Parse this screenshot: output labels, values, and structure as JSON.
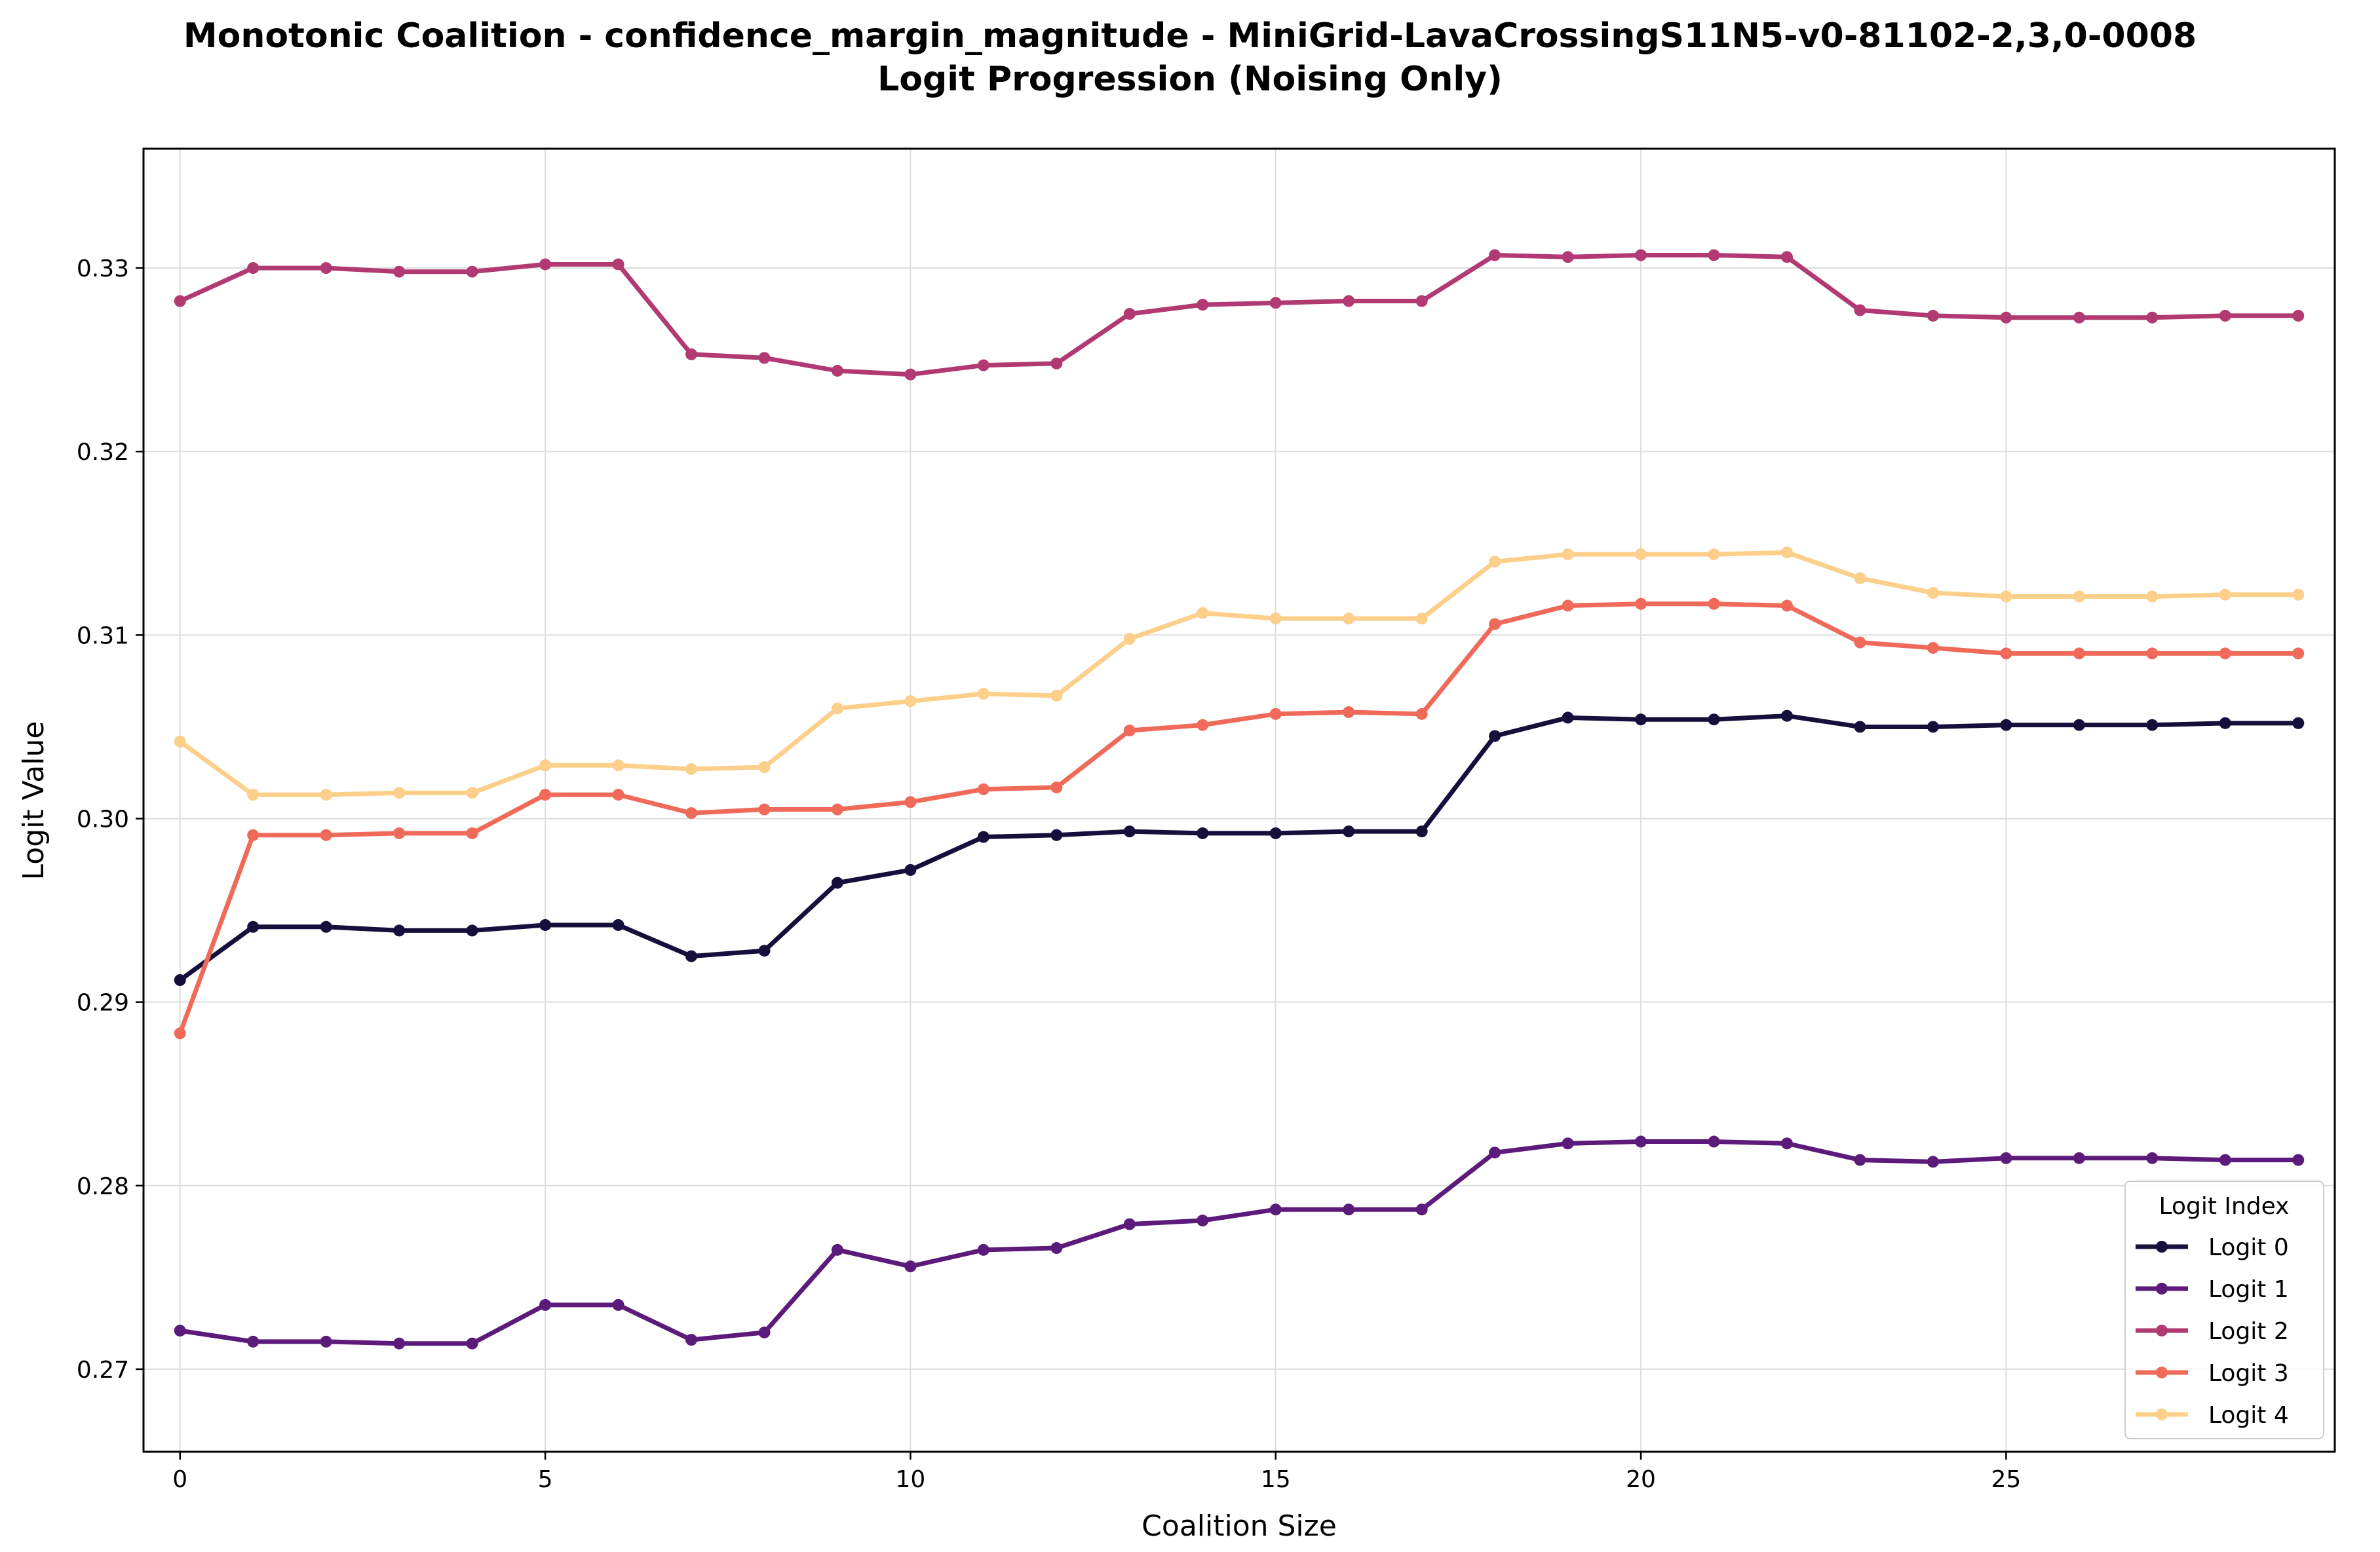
{
  "chart_data": {
    "type": "line",
    "title": "Monotonic Coalition - confidence_margin_magnitude - MiniGrid-LavaCrossingS11N5-v0-81102-2,3,0-0008",
    "subtitle": "Logit Progression (Noising Only)",
    "xlabel": "Coalition Size",
    "ylabel": "Logit Value",
    "xlim": [
      -0.5,
      29.5
    ],
    "ylim": [
      0.2655,
      0.3365
    ],
    "xticks": [
      0,
      5,
      10,
      15,
      20,
      25
    ],
    "xtick_labels": [
      "0",
      "5",
      "10",
      "15",
      "20",
      "25"
    ],
    "yticks": [
      0.27,
      0.28,
      0.29,
      0.3,
      0.31,
      0.32,
      0.33
    ],
    "ytick_labels": [
      "0.27",
      "0.28",
      "0.29",
      "0.30",
      "0.31",
      "0.32",
      "0.33"
    ],
    "grid": true,
    "legend": {
      "title": "Logit Index",
      "placement": "lower-right"
    },
    "x": [
      0,
      1,
      2,
      3,
      4,
      5,
      6,
      7,
      8,
      9,
      10,
      11,
      12,
      13,
      14,
      15,
      16,
      17,
      18,
      19,
      20,
      21,
      22,
      23,
      24,
      25,
      26,
      27,
      28,
      29
    ],
    "series": [
      {
        "name": "Logit 0",
        "color": "#150f3b",
        "values": [
          0.2912,
          0.2941,
          0.2941,
          0.2939,
          0.2939,
          0.2942,
          0.2942,
          0.2925,
          0.2928,
          0.2965,
          0.2972,
          0.299,
          0.2991,
          0.2993,
          0.2992,
          0.2992,
          0.2993,
          0.2993,
          0.3045,
          0.3055,
          0.3054,
          0.3054,
          0.3056,
          0.305,
          0.305,
          0.3051,
          0.3051,
          0.3051,
          0.3052,
          0.3052
        ]
      },
      {
        "name": "Logit 1",
        "color": "#5c1a7a",
        "values": [
          0.2721,
          0.2715,
          0.2715,
          0.2714,
          0.2714,
          0.2735,
          0.2735,
          0.2716,
          0.272,
          0.2765,
          0.2756,
          0.2765,
          0.2766,
          0.2779,
          0.2781,
          0.2787,
          0.2787,
          0.2787,
          0.2818,
          0.2823,
          0.2824,
          0.2824,
          0.2823,
          0.2814,
          0.2813,
          0.2815,
          0.2815,
          0.2815,
          0.2814,
          0.2814
        ]
      },
      {
        "name": "Logit 2",
        "color": "#b03a71",
        "values": [
          0.3282,
          0.33,
          0.33,
          0.3298,
          0.3298,
          0.3302,
          0.3302,
          0.3253,
          0.3251,
          0.3244,
          0.3242,
          0.3247,
          0.3248,
          0.3275,
          0.328,
          0.3281,
          0.3282,
          0.3282,
          0.3307,
          0.3306,
          0.3307,
          0.3307,
          0.3306,
          0.3277,
          0.3274,
          0.3273,
          0.3273,
          0.3273,
          0.3274,
          0.3274
        ]
      },
      {
        "name": "Logit 3",
        "color": "#f06a5a",
        "values": [
          0.2883,
          0.2991,
          0.2991,
          0.2992,
          0.2992,
          0.3013,
          0.3013,
          0.3003,
          0.3005,
          0.3005,
          0.3009,
          0.3016,
          0.3017,
          0.3048,
          0.3051,
          0.3057,
          0.3058,
          0.3057,
          0.3106,
          0.3116,
          0.3117,
          0.3117,
          0.3116,
          0.3096,
          0.3093,
          0.309,
          0.309,
          0.309,
          0.309,
          0.309
        ]
      },
      {
        "name": "Logit 4",
        "color": "#fccf8a",
        "values": [
          0.3042,
          0.3013,
          0.3013,
          0.3014,
          0.3014,
          0.3029,
          0.3029,
          0.3027,
          0.3028,
          0.306,
          0.3064,
          0.3068,
          0.3067,
          0.3098,
          0.3112,
          0.3109,
          0.3109,
          0.3109,
          0.314,
          0.3144,
          0.3144,
          0.3144,
          0.3145,
          0.3131,
          0.3123,
          0.3121,
          0.3121,
          0.3121,
          0.3122,
          0.3122
        ]
      }
    ]
  }
}
